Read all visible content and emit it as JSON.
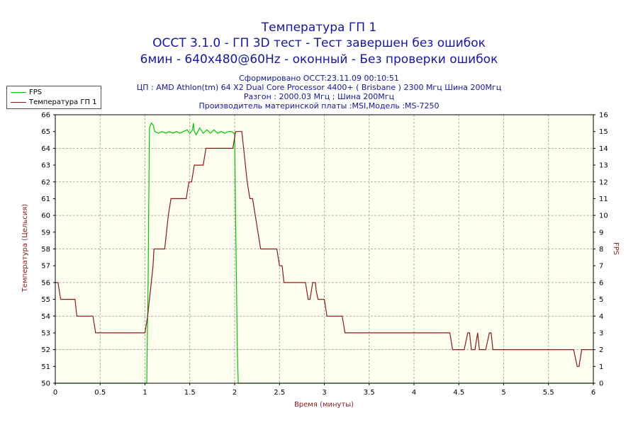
{
  "header": {
    "title_lines": [
      "Температура ГП 1",
      "OCCT 3.1.0 - ГП 3D тест - Тест завершен без ошибок",
      "6мин - 640x480@60Hz - оконный - Без проверки ошибок"
    ],
    "info_lines": [
      "Сформировано OCCT:23.11.09 00:10:51",
      "ЦП : AMD Athlon(tm) 64 X2 Dual Core Processor 4400+ ( Brisbane ) 2300 Мгц Шина 200Мгц",
      "Разгон : 2000.03 Мгц ; Шина 200Мгц",
      "Производитель материнской платы :MSI,Модель :MS-7250"
    ]
  },
  "colors": {
    "fps": "#00c800",
    "temp": "#8b1a1a",
    "plot_bg": "#fffff0",
    "grid": "#999999",
    "title": "#1515a8"
  },
  "chart_data": {
    "type": "line",
    "x_label": "Время (минуты)",
    "y_left_label": "Температура (Цельсия)",
    "y_right_label": "FPS",
    "x_range": [
      0,
      6
    ],
    "y_left_range": [
      50,
      66
    ],
    "y_right_range": [
      0,
      16
    ],
    "x_ticks": [
      0,
      0.5,
      1,
      1.5,
      2,
      2.5,
      3,
      3.5,
      4,
      4.5,
      5,
      5.5,
      6
    ],
    "y_left_ticks": [
      50,
      51,
      52,
      53,
      54,
      55,
      56,
      57,
      58,
      59,
      60,
      61,
      62,
      63,
      64,
      65,
      66
    ],
    "y_right_ticks": [
      0,
      1,
      2,
      3,
      4,
      5,
      6,
      7,
      8,
      9,
      10,
      11,
      12,
      13,
      14,
      15,
      16
    ],
    "grid": true,
    "legend_position": "top-left",
    "series": [
      {
        "name": "FPS",
        "axis": "right",
        "points": [
          [
            0,
            0
          ],
          [
            1.0,
            0
          ],
          [
            1.02,
            0
          ],
          [
            1.035,
            6
          ],
          [
            1.05,
            15.2
          ],
          [
            1.07,
            15.5
          ],
          [
            1.09,
            15.4
          ],
          [
            1.11,
            15.0
          ],
          [
            1.15,
            14.9
          ],
          [
            1.19,
            15.0
          ],
          [
            1.23,
            14.9
          ],
          [
            1.27,
            15.0
          ],
          [
            1.31,
            14.9
          ],
          [
            1.35,
            15.0
          ],
          [
            1.39,
            14.9
          ],
          [
            1.43,
            15.0
          ],
          [
            1.47,
            15.1
          ],
          [
            1.5,
            14.9
          ],
          [
            1.53,
            15.1
          ],
          [
            1.54,
            15.5
          ],
          [
            1.55,
            15.0
          ],
          [
            1.57,
            14.8
          ],
          [
            1.61,
            15.2
          ],
          [
            1.65,
            14.9
          ],
          [
            1.69,
            15.1
          ],
          [
            1.73,
            14.9
          ],
          [
            1.77,
            15.1
          ],
          [
            1.81,
            14.9
          ],
          [
            1.85,
            15.0
          ],
          [
            1.89,
            14.9
          ],
          [
            1.93,
            15.0
          ],
          [
            1.97,
            15.0
          ],
          [
            1.99,
            14.9
          ],
          [
            2.0,
            14.9
          ],
          [
            2.01,
            10
          ],
          [
            2.03,
            2
          ],
          [
            2.04,
            0
          ],
          [
            6,
            0
          ]
        ]
      },
      {
        "name": "Температура ГП 1",
        "axis": "left",
        "points": [
          [
            0,
            56
          ],
          [
            0.03,
            56
          ],
          [
            0.06,
            55
          ],
          [
            0.22,
            55
          ],
          [
            0.24,
            54
          ],
          [
            0.42,
            54
          ],
          [
            0.45,
            53
          ],
          [
            1.0,
            53
          ],
          [
            1.03,
            54
          ],
          [
            1.05,
            55
          ],
          [
            1.07,
            56
          ],
          [
            1.09,
            57
          ],
          [
            1.1,
            58
          ],
          [
            1.22,
            58
          ],
          [
            1.24,
            59
          ],
          [
            1.26,
            60
          ],
          [
            1.29,
            61
          ],
          [
            1.46,
            61
          ],
          [
            1.49,
            62
          ],
          [
            1.52,
            62
          ],
          [
            1.55,
            63
          ],
          [
            1.65,
            63
          ],
          [
            1.68,
            64
          ],
          [
            1.98,
            64
          ],
          [
            2.01,
            65
          ],
          [
            2.08,
            65
          ],
          [
            2.1,
            64
          ],
          [
            2.12,
            63
          ],
          [
            2.14,
            62
          ],
          [
            2.17,
            61
          ],
          [
            2.2,
            61
          ],
          [
            2.23,
            60
          ],
          [
            2.26,
            59
          ],
          [
            2.29,
            58
          ],
          [
            2.47,
            58
          ],
          [
            2.5,
            57
          ],
          [
            2.53,
            57
          ],
          [
            2.55,
            56
          ],
          [
            2.79,
            56
          ],
          [
            2.82,
            55
          ],
          [
            2.84,
            55
          ],
          [
            2.87,
            56
          ],
          [
            2.9,
            56
          ],
          [
            2.91,
            55.5
          ],
          [
            2.93,
            55
          ],
          [
            3.0,
            55
          ],
          [
            3.03,
            54
          ],
          [
            3.2,
            54
          ],
          [
            3.23,
            53
          ],
          [
            4.4,
            53
          ],
          [
            4.43,
            52
          ],
          [
            4.56,
            52
          ],
          [
            4.6,
            53
          ],
          [
            4.62,
            53
          ],
          [
            4.64,
            52
          ],
          [
            4.68,
            52
          ],
          [
            4.71,
            53
          ],
          [
            4.73,
            52
          ],
          [
            4.8,
            52
          ],
          [
            4.84,
            53
          ],
          [
            4.86,
            53
          ],
          [
            4.88,
            52
          ],
          [
            5.78,
            52
          ],
          [
            5.82,
            51
          ],
          [
            5.84,
            51
          ],
          [
            5.87,
            52
          ],
          [
            6,
            52
          ]
        ]
      }
    ]
  }
}
